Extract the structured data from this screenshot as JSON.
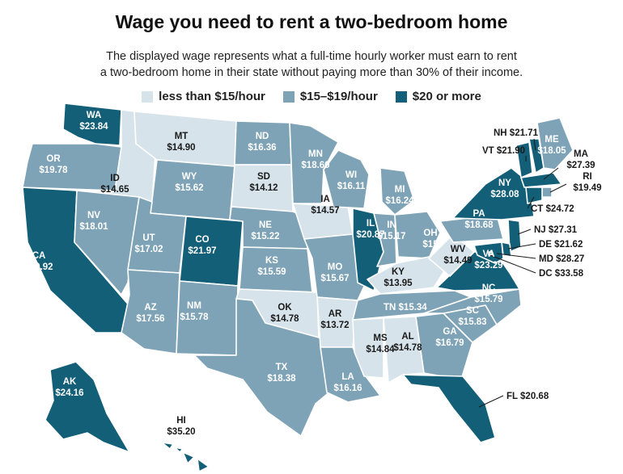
{
  "title": "Wage you need to rent a two-bedroom home",
  "subtitle_line1": "The displayed wage represents what a full-time hourly worker must earn to rent",
  "subtitle_line2": "a two-bedroom home in their state without paying more than 30% of their income.",
  "colors": {
    "low": "#d6e3ea",
    "mid": "#7ea3b6",
    "high": "#135f78",
    "border": "#ffffff",
    "dark_text": "#1a1a1a",
    "light_text": "#ffffff"
  },
  "legend": [
    {
      "label": "less than $15/hour",
      "tier": "low"
    },
    {
      "label": "$15–$19/hour",
      "tier": "mid"
    },
    {
      "label": "$20 or more",
      "tier": "high"
    }
  ],
  "states": [
    {
      "code": "WA",
      "wage": "$23.84",
      "tier": "high"
    },
    {
      "code": "OR",
      "wage": "$19.78",
      "tier": "mid"
    },
    {
      "code": "CA",
      "wage": "$30.92",
      "tier": "high"
    },
    {
      "code": "ID",
      "wage": "$14.65",
      "tier": "low"
    },
    {
      "code": "NV",
      "wage": "$18.01",
      "tier": "mid"
    },
    {
      "code": "MT",
      "wage": "$14.90",
      "tier": "low"
    },
    {
      "code": "WY",
      "wage": "$15.62",
      "tier": "mid"
    },
    {
      "code": "UT",
      "wage": "$17.02",
      "tier": "mid"
    },
    {
      "code": "AZ",
      "wage": "$17.56",
      "tier": "mid"
    },
    {
      "code": "CO",
      "wage": "$21.97",
      "tier": "high"
    },
    {
      "code": "NM",
      "wage": "$15.78",
      "tier": "mid"
    },
    {
      "code": "ND",
      "wage": "$16.36",
      "tier": "mid"
    },
    {
      "code": "SD",
      "wage": "$14.12",
      "tier": "low"
    },
    {
      "code": "NE",
      "wage": "$15.22",
      "tier": "mid"
    },
    {
      "code": "KS",
      "wage": "$15.59",
      "tier": "mid"
    },
    {
      "code": "OK",
      "wage": "$14.78",
      "tier": "low"
    },
    {
      "code": "TX",
      "wage": "$18.38",
      "tier": "mid"
    },
    {
      "code": "MN",
      "wage": "$18.60",
      "tier": "mid"
    },
    {
      "code": "IA",
      "wage": "$14.57",
      "tier": "low"
    },
    {
      "code": "MO",
      "wage": "$15.67",
      "tier": "mid"
    },
    {
      "code": "AR",
      "wage": "$13.72",
      "tier": "low"
    },
    {
      "code": "LA",
      "wage": "$16.16",
      "tier": "mid"
    },
    {
      "code": "WI",
      "wage": "$16.11",
      "tier": "mid"
    },
    {
      "code": "IL",
      "wage": "$20.87",
      "tier": "high"
    },
    {
      "code": "MI",
      "wage": "$16.24",
      "tier": "mid"
    },
    {
      "code": "IN",
      "wage": "$15.17",
      "tier": "mid"
    },
    {
      "code": "OH",
      "wage": "$15",
      "tier": "mid"
    },
    {
      "code": "KY",
      "wage": "$13.95",
      "tier": "low"
    },
    {
      "code": "TN",
      "wage": "$15.34",
      "tier": "mid"
    },
    {
      "code": "MS",
      "wage": "$14.84",
      "tier": "low"
    },
    {
      "code": "AL",
      "wage": "$14.78",
      "tier": "low"
    },
    {
      "code": "GA",
      "wage": "$16.79",
      "tier": "mid"
    },
    {
      "code": "FL",
      "wage": "$20.68",
      "tier": "high"
    },
    {
      "code": "SC",
      "wage": "$15.83",
      "tier": "mid"
    },
    {
      "code": "NC",
      "wage": "$15.79",
      "tier": "mid"
    },
    {
      "code": "VA",
      "wage": "$23.29",
      "tier": "high"
    },
    {
      "code": "WV",
      "wage": "$14.49",
      "tier": "low"
    },
    {
      "code": "PA",
      "wage": "$18.68",
      "tier": "mid"
    },
    {
      "code": "NY",
      "wage": "$28.08",
      "tier": "high"
    },
    {
      "code": "ME",
      "wage": "$18.05",
      "tier": "mid"
    },
    {
      "code": "NH",
      "wage": "$21.71",
      "tier": "high"
    },
    {
      "code": "VT",
      "wage": "$21.90",
      "tier": "high"
    },
    {
      "code": "MA",
      "wage": "$27.39",
      "tier": "high"
    },
    {
      "code": "RI",
      "wage": "$19.49",
      "tier": "mid"
    },
    {
      "code": "CT",
      "wage": "$24.72",
      "tier": "high"
    },
    {
      "code": "NJ",
      "wage": "$27.31",
      "tier": "high"
    },
    {
      "code": "DE",
      "wage": "$21.62",
      "tier": "high"
    },
    {
      "code": "MD",
      "wage": "$28.27",
      "tier": "high"
    },
    {
      "code": "DC",
      "wage": "$33.58",
      "tier": "high"
    },
    {
      "code": "AK",
      "wage": "$24.16",
      "tier": "high"
    },
    {
      "code": "HI",
      "wage": "$35.20",
      "tier": "high"
    }
  ]
}
